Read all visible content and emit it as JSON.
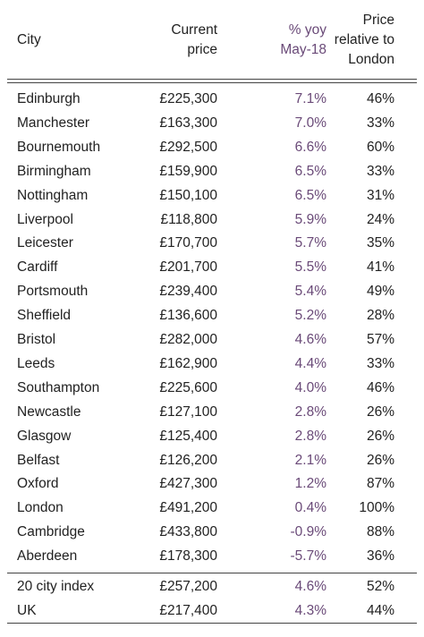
{
  "headers": {
    "city": "City",
    "current_price": [
      "Current",
      "price"
    ],
    "yoy": [
      "% yoy",
      "May-18"
    ],
    "relative": [
      "Price",
      "relative to",
      "London"
    ]
  },
  "rows": [
    {
      "city": "Edinburgh",
      "price": "£225,300",
      "yoy": "7.1%",
      "rel": "46%"
    },
    {
      "city": "Manchester",
      "price": "£163,300",
      "yoy": "7.0%",
      "rel": "33%"
    },
    {
      "city": "Bournemouth",
      "price": "£292,500",
      "yoy": "6.6%",
      "rel": "60%"
    },
    {
      "city": "Birmingham",
      "price": "£159,900",
      "yoy": "6.5%",
      "rel": "33%"
    },
    {
      "city": "Nottingham",
      "price": "£150,100",
      "yoy": "6.5%",
      "rel": "31%"
    },
    {
      "city": "Liverpool",
      "price": "£118,800",
      "yoy": "5.9%",
      "rel": "24%"
    },
    {
      "city": "Leicester",
      "price": "£170,700",
      "yoy": "5.7%",
      "rel": "35%"
    },
    {
      "city": "Cardiff",
      "price": "£201,700",
      "yoy": "5.5%",
      "rel": "41%"
    },
    {
      "city": "Portsmouth",
      "price": "£239,400",
      "yoy": "5.4%",
      "rel": "49%"
    },
    {
      "city": "Sheffield",
      "price": "£136,600",
      "yoy": "5.2%",
      "rel": "28%"
    },
    {
      "city": "Bristol",
      "price": "£282,000",
      "yoy": "4.6%",
      "rel": "57%"
    },
    {
      "city": "Leeds",
      "price": "£162,900",
      "yoy": "4.4%",
      "rel": "33%"
    },
    {
      "city": "Southampton",
      "price": "£225,600",
      "yoy": "4.0%",
      "rel": "46%"
    },
    {
      "city": "Newcastle",
      "price": "£127,100",
      "yoy": "2.8%",
      "rel": "26%"
    },
    {
      "city": "Glasgow",
      "price": "£125,400",
      "yoy": "2.8%",
      "rel": "26%"
    },
    {
      "city": "Belfast",
      "price": "£126,200",
      "yoy": "2.1%",
      "rel": "26%"
    },
    {
      "city": "Oxford",
      "price": "£427,300",
      "yoy": "1.2%",
      "rel": "87%"
    },
    {
      "city": "London",
      "price": "£491,200",
      "yoy": "0.4%",
      "rel": "100%"
    },
    {
      "city": "Cambridge",
      "price": "£433,800",
      "yoy": "-0.9%",
      "rel": "88%"
    },
    {
      "city": "Aberdeen",
      "price": "£178,300",
      "yoy": "-5.7%",
      "rel": "36%"
    }
  ],
  "summary_rows": [
    {
      "city": "20 city index",
      "price": "£257,200",
      "yoy": "4.6%",
      "rel": "52%"
    },
    {
      "city": "UK",
      "price": "£217,400",
      "yoy": "4.3%",
      "rel": "44%"
    }
  ],
  "colors": {
    "yoy_text": "#6a4a78",
    "body_text": "#222222",
    "rule": "#444444"
  }
}
